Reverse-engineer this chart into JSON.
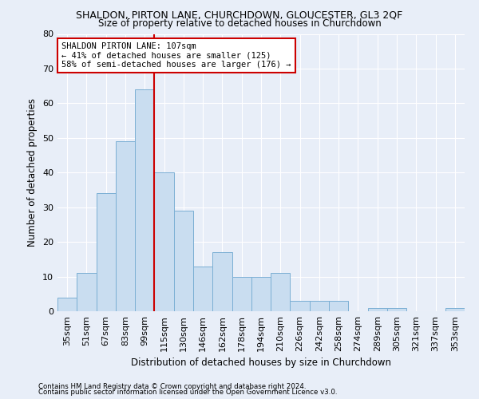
{
  "title": "SHALDON, PIRTON LANE, CHURCHDOWN, GLOUCESTER, GL3 2QF",
  "subtitle": "Size of property relative to detached houses in Churchdown",
  "xlabel": "Distribution of detached houses by size in Churchdown",
  "ylabel": "Number of detached properties",
  "categories": [
    "35sqm",
    "51sqm",
    "67sqm",
    "83sqm",
    "99sqm",
    "115sqm",
    "130sqm",
    "146sqm",
    "162sqm",
    "178sqm",
    "194sqm",
    "210sqm",
    "226sqm",
    "242sqm",
    "258sqm",
    "274sqm",
    "289sqm",
    "305sqm",
    "321sqm",
    "337sqm",
    "353sqm"
  ],
  "values": [
    4,
    11,
    34,
    49,
    64,
    40,
    29,
    13,
    17,
    10,
    10,
    11,
    3,
    3,
    3,
    0,
    1,
    1,
    0,
    0,
    1
  ],
  "bar_color": "#c9ddf0",
  "bar_edgecolor": "#7bafd4",
  "vline_x_index": 5,
  "vline_color": "#cc0000",
  "ylim": [
    0,
    80
  ],
  "yticks": [
    0,
    10,
    20,
    30,
    40,
    50,
    60,
    70,
    80
  ],
  "annotation_title": "SHALDON PIRTON LANE: 107sqm",
  "annotation_line1": "← 41% of detached houses are smaller (125)",
  "annotation_line2": "58% of semi-detached houses are larger (176) →",
  "annotation_box_facecolor": "#ffffff",
  "annotation_box_edgecolor": "#cc0000",
  "background_color": "#e8eef8",
  "plot_bg_color": "#e8eef8",
  "grid_color": "#ffffff",
  "title_fontsize": 9,
  "subtitle_fontsize": 8.5,
  "ylabel_fontsize": 8.5,
  "xlabel_fontsize": 8.5,
  "tick_fontsize": 8,
  "annotation_fontsize": 7.5,
  "footnote1": "Contains HM Land Registry data © Crown copyright and database right 2024.",
  "footnote2": "Contains public sector information licensed under the Open Government Licence v3.0.",
  "footnote_fontsize": 6.2
}
